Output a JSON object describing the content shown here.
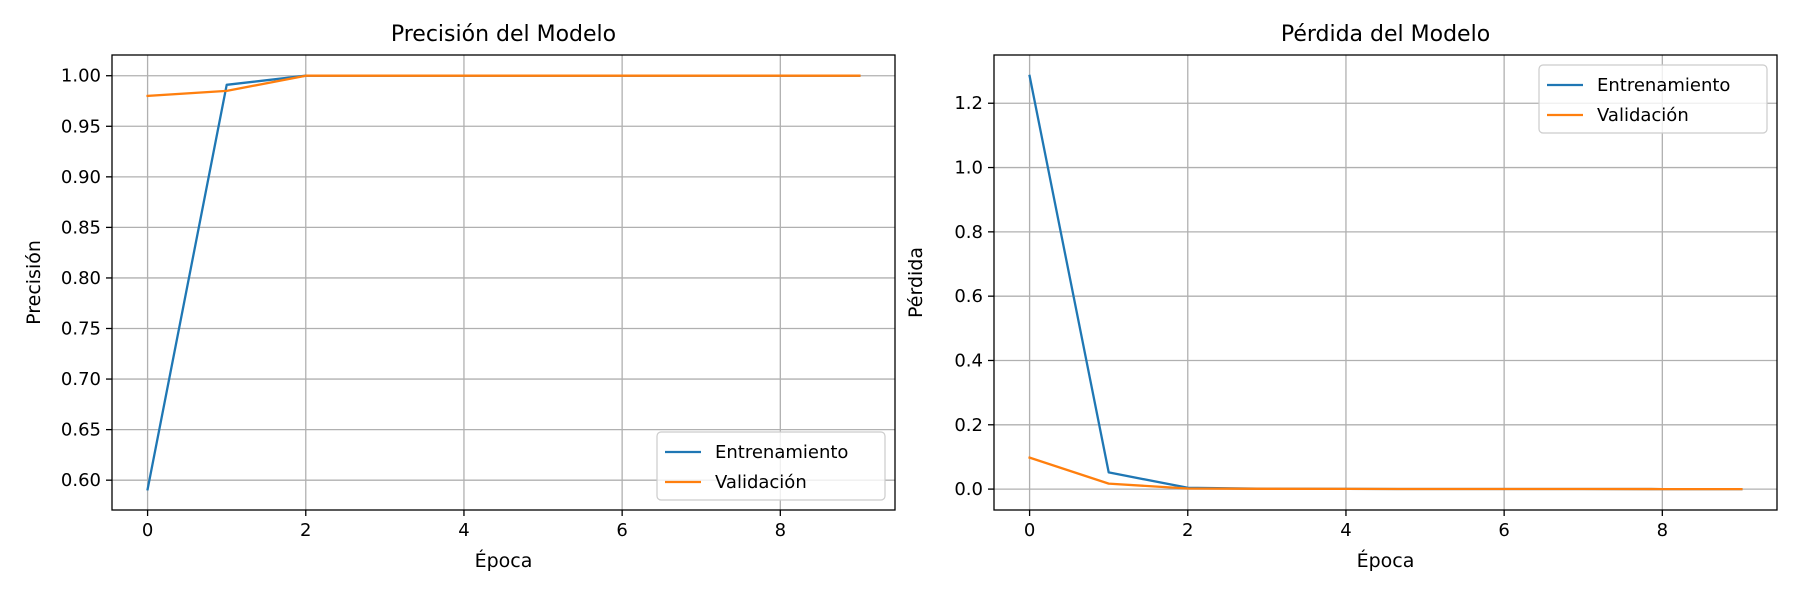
{
  "colors": {
    "train": "#1f77b4",
    "val": "#ff7f0e",
    "grid": "#b0b0b0"
  },
  "chart_data": [
    {
      "type": "line",
      "title": "Precisión del Modelo",
      "xlabel": "Época",
      "ylabel": "Precisión",
      "x": [
        0,
        1,
        2,
        3,
        4,
        5,
        6,
        7,
        8,
        9
      ],
      "xticks": [
        0,
        2,
        4,
        6,
        8
      ],
      "xlim": [
        -0.45,
        9.45
      ],
      "yticks": [
        0.6,
        0.65,
        0.7,
        0.75,
        0.8,
        0.85,
        0.9,
        0.95,
        1.0
      ],
      "ytick_labels": [
        "0.60",
        "0.65",
        "0.70",
        "0.75",
        "0.80",
        "0.85",
        "0.90",
        "0.95",
        "1.00"
      ],
      "ylim": [
        0.5705,
        1.0205
      ],
      "grid": true,
      "legend_position": "lower-right",
      "series": [
        {
          "name": "Entrenamiento",
          "color": "#1f77b4",
          "values": [
            0.591,
            0.991,
            1.0,
            1.0,
            1.0,
            1.0,
            1.0,
            1.0,
            1.0,
            1.0
          ]
        },
        {
          "name": "Validación",
          "color": "#ff7f0e",
          "values": [
            0.98,
            0.985,
            1.0,
            1.0,
            1.0,
            1.0,
            1.0,
            1.0,
            1.0,
            1.0
          ]
        }
      ]
    },
    {
      "type": "line",
      "title": "Pérdida del Modelo",
      "xlabel": "Época",
      "ylabel": "Pérdida",
      "x": [
        0,
        1,
        2,
        3,
        4,
        5,
        6,
        7,
        8,
        9
      ],
      "xticks": [
        0,
        2,
        4,
        6,
        8
      ],
      "xlim": [
        -0.45,
        9.45
      ],
      "yticks": [
        0.0,
        0.2,
        0.4,
        0.6,
        0.8,
        1.0,
        1.2
      ],
      "ytick_labels": [
        "0.0",
        "0.2",
        "0.4",
        "0.6",
        "0.8",
        "1.0",
        "1.2"
      ],
      "ylim": [
        -0.065,
        1.35
      ],
      "grid": true,
      "legend_position": "upper-right",
      "series": [
        {
          "name": "Entrenamiento",
          "color": "#1f77b4",
          "values": [
            1.285,
            0.052,
            0.004,
            0.001,
            0.0005,
            0.0003,
            0.0002,
            0.0002,
            0.0001,
            0.0001
          ]
        },
        {
          "name": "Validación",
          "color": "#ff7f0e",
          "values": [
            0.098,
            0.017,
            0.002,
            0.0008,
            0.0005,
            0.0003,
            0.0002,
            0.0002,
            0.0001,
            0.0001
          ]
        }
      ]
    }
  ]
}
